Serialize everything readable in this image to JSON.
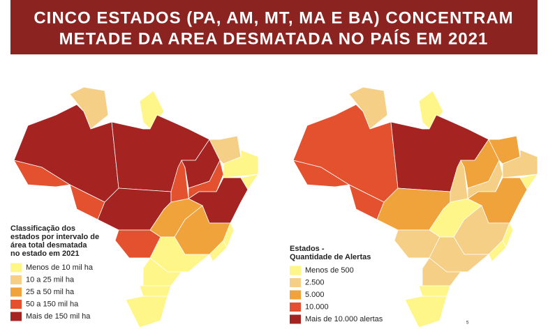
{
  "title": {
    "lines": [
      "CINCO ESTADOS (PA, AM, MT, MA E BA) CONCENTRAM",
      "METADE DA AREA DESMATADA NO PAÍS EM 2021"
    ]
  },
  "maps": [
    {
      "legend": {
        "title_lines": [
          "Classificação dos",
          "estados por intervalo de",
          "área total desmatada",
          "no estado em 2021"
        ],
        "items": [
          {
            "label": "Menos de 10 mil ha",
            "color": "#fff68a"
          },
          {
            "label": "10 a 25 mil ha",
            "color": "#f5cf85"
          },
          {
            "label": "25 a 50 mil ha",
            "color": "#efa33a"
          },
          {
            "label": "50 a 150 mil ha",
            "color": "#e4512e"
          },
          {
            "label": "Mais de 150 mil ha",
            "color": "#a52320"
          }
        ]
      }
    },
    {
      "legend": {
        "title_lines": [
          "Estados -",
          "Quantidade de Alertas"
        ],
        "items": [
          {
            "label": "Menos de 500",
            "color": "#fff68a"
          },
          {
            "label": "2.500",
            "color": "#f5cf85"
          },
          {
            "label": "5.000",
            "color": "#efa33a"
          },
          {
            "label": "10.000",
            "color": "#e4512e"
          },
          {
            "label": "Mais de 10.000 alertas",
            "color": "#a52320"
          }
        ]
      }
    }
  ],
  "page_number": "5"
}
